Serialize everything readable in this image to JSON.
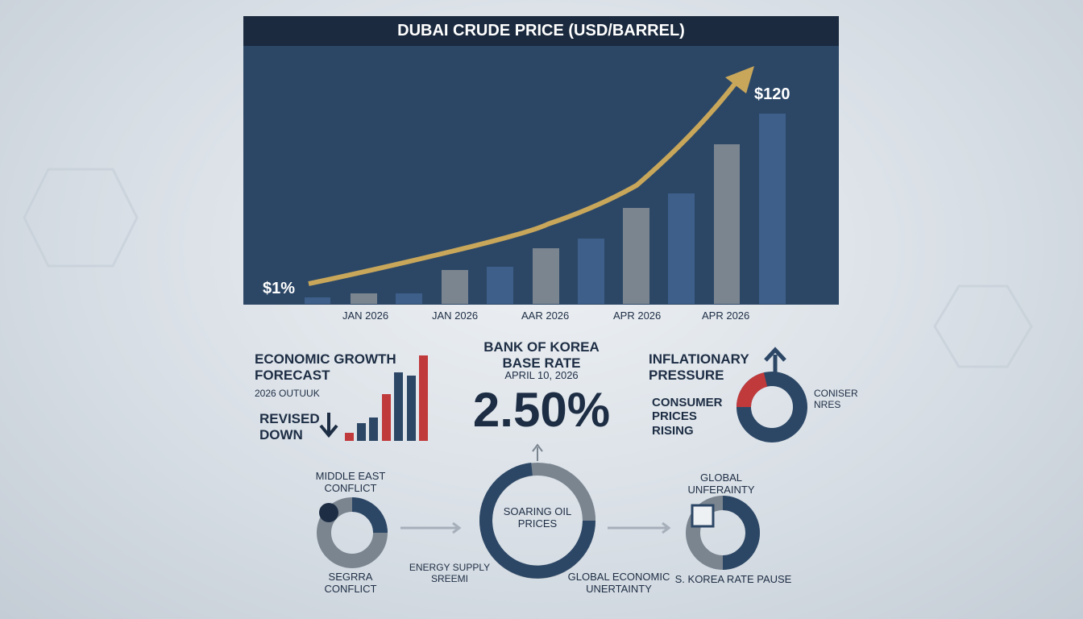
{
  "chart": {
    "title": "DUBAI CRUDE PRICE (USD/BARREL)",
    "start_label": "$1%",
    "end_label": "$120",
    "x_labels": [
      "JAN 2026",
      "JAN 2026",
      "AAR 2026",
      "APR 2026",
      "APR 2026"
    ]
  },
  "growth": {
    "title": "ECONOMIC GROWTH FORECAST",
    "subtitle": "2026 OUTUUK",
    "status": "REVISED DOWN"
  },
  "bok": {
    "title": "BANK OF KOREA BASE RATE",
    "date": "APRIL 10, 2026",
    "rate": "2.50%"
  },
  "inflation": {
    "title": "INFLATIONARY PRESSURE",
    "note": "CONSUMER PRICES RISING",
    "donut_label": "CONISER NRES"
  },
  "flow": {
    "middle_east": "MIDDLE EAST CONFLICT",
    "segrra": "SEGRRA CONFLICT",
    "center": "SOARING OIL PRICES",
    "energy": "ENERGY SUPPLY SREEMI",
    "global_economic": "GLOBAL ECONOMIC UNERTAINTY",
    "global": "GLOBAL UNFERAINTY",
    "korea": "S. KOREA RATE PAUSE"
  }
}
